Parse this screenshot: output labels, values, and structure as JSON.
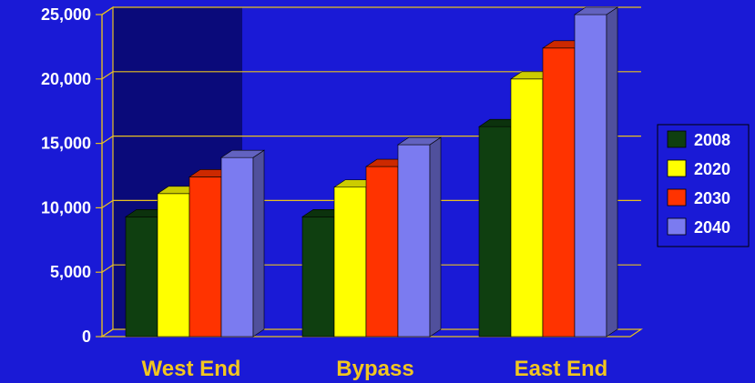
{
  "chart_data": {
    "type": "bar",
    "categories": [
      "West End",
      "Bypass",
      "East End"
    ],
    "series": [
      {
        "name": "2008",
        "values": [
          9300,
          9300,
          16300
        ]
      },
      {
        "name": "2020",
        "values": [
          11100,
          11600,
          20000
        ]
      },
      {
        "name": "2030",
        "values": [
          12400,
          13200,
          22400
        ]
      },
      {
        "name": "2040",
        "values": [
          13900,
          14900,
          25000
        ]
      }
    ],
    "yticks": [
      "0",
      "5,000",
      "10,000",
      "15,000",
      "20,000",
      "25,000"
    ],
    "ylim": [
      0,
      25000
    ],
    "grid": true,
    "legend_position": "right",
    "colors": {
      "background": "#1a1ad6",
      "plot_highlight": "#0a0a7a",
      "grid": "#e8c020",
      "category_label": "#f2c61f",
      "series": [
        "#0f3f10",
        "#ffff00",
        "#ff3300",
        "#7b7bf0"
      ]
    }
  }
}
